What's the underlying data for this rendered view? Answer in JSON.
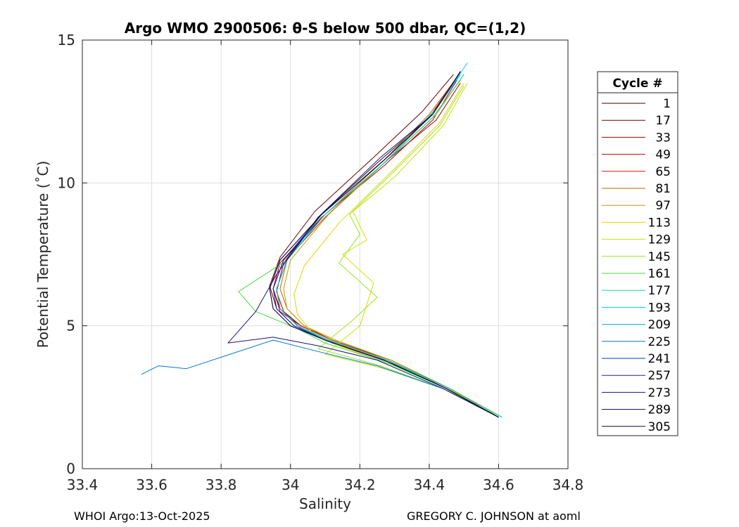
{
  "chart_data": {
    "type": "line",
    "title": "Argo WMO 2900506: θ-S below 500 dbar,  QC=(1,2)",
    "xlabel": "Salinity",
    "ylabel": "Potential Temperature (˚C)",
    "xlim": [
      33.4,
      34.8
    ],
    "ylim": [
      0,
      15
    ],
    "xticks": [
      33.4,
      33.6,
      33.8,
      34,
      34.2,
      34.4,
      34.6,
      34.8
    ],
    "xtick_labels": [
      "33.4",
      "33.6",
      "33.8",
      "34",
      "34.2",
      "34.4",
      "34.6",
      "34.8"
    ],
    "yticks": [
      0,
      5,
      10,
      15
    ],
    "ytick_labels": [
      "0",
      "5",
      "10",
      "15"
    ],
    "grid": true,
    "legend_title": "Cycle #",
    "legend_position": "right",
    "series": [
      {
        "name": "1",
        "color": "#3c0000",
        "x": [
          34.6,
          34.46,
          34.28,
          34.12,
          34.03,
          33.98,
          33.96,
          33.98,
          34.08,
          34.25,
          34.4,
          34.48
        ],
        "y": [
          1.8,
          2.8,
          3.8,
          4.5,
          5.0,
          5.5,
          6.2,
          7.2,
          8.8,
          10.7,
          12.3,
          13.7
        ]
      },
      {
        "name": "17",
        "color": "#6a0000",
        "x": [
          34.6,
          34.45,
          34.27,
          34.1,
          34.01,
          33.96,
          33.94,
          33.97,
          34.07,
          34.24,
          34.38,
          34.47
        ],
        "y": [
          1.8,
          2.8,
          3.8,
          4.5,
          5.0,
          5.6,
          6.4,
          7.4,
          9.0,
          10.9,
          12.5,
          13.8
        ]
      },
      {
        "name": "33",
        "color": "#990000",
        "x": [
          34.6,
          34.45,
          34.28,
          34.11,
          34.02,
          33.97,
          33.95,
          33.98,
          34.1,
          34.28,
          34.42,
          34.49
        ],
        "y": [
          1.8,
          2.8,
          3.8,
          4.5,
          5.0,
          5.6,
          6.3,
          7.3,
          8.9,
          10.8,
          12.2,
          13.5
        ]
      },
      {
        "name": "49",
        "color": "#c00000",
        "x": [
          34.61,
          34.46,
          34.29,
          34.12,
          34.03,
          33.97,
          33.95,
          33.97,
          34.09,
          34.27,
          34.41,
          34.48
        ],
        "y": [
          1.8,
          2.8,
          3.8,
          4.5,
          5.0,
          5.5,
          6.3,
          7.2,
          8.8,
          10.6,
          12.2,
          13.6
        ]
      },
      {
        "name": "65",
        "color": "#d51a0a",
        "x": [
          34.6,
          34.46,
          34.29,
          34.12,
          34.03,
          33.98,
          33.96,
          33.98,
          34.1,
          34.27,
          34.4,
          34.48
        ],
        "y": [
          1.8,
          2.8,
          3.7,
          4.4,
          4.9,
          5.5,
          6.2,
          7.2,
          8.8,
          10.7,
          12.3,
          13.7
        ]
      },
      {
        "name": "81",
        "color": "#b56a00",
        "x": [
          34.6,
          34.46,
          34.28,
          34.12,
          34.04,
          33.99,
          33.97,
          33.99,
          34.1,
          34.27,
          34.4,
          34.48
        ],
        "y": [
          1.8,
          2.8,
          3.8,
          4.5,
          5.0,
          5.6,
          6.3,
          7.3,
          8.9,
          10.8,
          12.4,
          13.7
        ]
      },
      {
        "name": "97",
        "color": "#c89600",
        "x": [
          34.6,
          34.46,
          34.29,
          34.13,
          34.04,
          33.99,
          33.98,
          34.0,
          34.11,
          34.28,
          34.41,
          34.49
        ],
        "y": [
          1.8,
          2.8,
          3.8,
          4.5,
          5.0,
          5.6,
          6.3,
          7.3,
          8.9,
          10.8,
          12.3,
          13.6
        ]
      },
      {
        "name": "113",
        "color": "#e6d200",
        "x": [
          34.6,
          34.47,
          34.3,
          34.14,
          34.06,
          34.02,
          34.01,
          34.04,
          34.14,
          34.3,
          34.43,
          34.5
        ],
        "y": [
          1.8,
          2.7,
          3.6,
          4.3,
          4.8,
          5.4,
          6.1,
          7.1,
          8.6,
          10.5,
          12.1,
          13.5
        ]
      },
      {
        "name": "129",
        "color": "#c8e600",
        "x": [
          34.61,
          34.44,
          34.27,
          34.1,
          34.2,
          34.24,
          34.15,
          34.22,
          34.18,
          34.3,
          34.44,
          34.51
        ],
        "y": [
          1.8,
          2.8,
          3.5,
          4.0,
          5.0,
          6.5,
          7.5,
          8.0,
          9.0,
          10.2,
          12.0,
          13.5
        ]
      },
      {
        "name": "145",
        "color": "#96e61e",
        "x": [
          34.61,
          34.44,
          34.26,
          34.08,
          34.18,
          34.25,
          34.14,
          34.2,
          34.17,
          34.29,
          34.43,
          34.5
        ],
        "y": [
          1.8,
          2.8,
          3.6,
          4.2,
          5.2,
          6.0,
          7.2,
          8.2,
          8.9,
          10.3,
          12.0,
          13.4
        ]
      },
      {
        "name": "161",
        "color": "#46dc3c",
        "x": [
          34.6,
          34.45,
          34.28,
          34.1,
          34.02,
          33.9,
          33.85,
          33.99,
          34.1,
          34.28,
          34.42,
          34.5
        ],
        "y": [
          1.8,
          2.8,
          3.7,
          4.4,
          4.9,
          5.5,
          6.2,
          7.3,
          8.9,
          10.8,
          12.4,
          13.8
        ]
      },
      {
        "name": "177",
        "color": "#1edc8c",
        "x": [
          34.6,
          34.45,
          34.28,
          34.11,
          34.02,
          33.97,
          33.96,
          33.99,
          34.1,
          34.28,
          34.42,
          34.5
        ],
        "y": [
          1.8,
          2.8,
          3.8,
          4.5,
          5.0,
          5.6,
          6.3,
          7.3,
          8.9,
          10.8,
          12.4,
          13.8
        ]
      },
      {
        "name": "193",
        "color": "#00d2c8",
        "x": [
          34.61,
          34.46,
          34.28,
          34.11,
          34.02,
          33.97,
          33.96,
          33.99,
          34.1,
          34.28,
          34.42,
          34.51
        ],
        "y": [
          1.8,
          2.8,
          3.8,
          4.5,
          5.0,
          5.6,
          6.3,
          7.3,
          8.9,
          10.8,
          12.6,
          14.2
        ]
      },
      {
        "name": "209",
        "color": "#00aadc",
        "x": [
          34.6,
          34.45,
          34.27,
          34.1,
          34.02,
          33.97,
          33.96,
          33.99,
          34.09,
          34.27,
          34.41,
          34.49
        ],
        "y": [
          1.8,
          2.8,
          3.8,
          4.5,
          5.0,
          5.6,
          6.3,
          7.3,
          8.9,
          10.8,
          12.4,
          13.8
        ]
      },
      {
        "name": "225",
        "color": "#0078d2",
        "x": [
          34.6,
          34.44,
          34.25,
          34.08,
          33.95,
          33.8,
          33.7,
          33.62,
          33.57
        ],
        "y": [
          1.8,
          2.8,
          3.6,
          4.1,
          4.5,
          3.9,
          3.5,
          3.6,
          3.3
        ]
      },
      {
        "name": "241",
        "color": "#0046c8",
        "x": [
          34.6,
          34.45,
          34.27,
          34.1,
          34.01,
          33.96,
          33.95,
          33.98,
          34.09,
          34.27,
          34.41,
          34.49
        ],
        "y": [
          1.8,
          2.8,
          3.8,
          4.5,
          5.0,
          5.6,
          6.3,
          7.3,
          8.9,
          10.8,
          12.4,
          13.9
        ]
      },
      {
        "name": "257",
        "color": "#1e1eb4",
        "x": [
          34.6,
          34.45,
          34.27,
          34.1,
          34.01,
          33.96,
          33.95,
          33.98,
          34.09,
          34.27,
          34.41,
          34.49
        ],
        "y": [
          1.8,
          2.8,
          3.8,
          4.5,
          5.0,
          5.6,
          6.3,
          7.3,
          8.9,
          10.8,
          12.4,
          13.9
        ]
      },
      {
        "name": "273",
        "color": "#141478",
        "x": [
          34.6,
          34.44,
          34.25,
          34.08,
          33.95,
          33.82,
          33.9,
          33.96,
          34.08,
          34.26,
          34.41,
          34.49
        ],
        "y": [
          1.8,
          2.8,
          3.8,
          4.3,
          4.6,
          4.4,
          5.5,
          6.8,
          8.8,
          10.9,
          12.4,
          13.9
        ]
      },
      {
        "name": "289",
        "color": "#0a0a50",
        "x": [
          34.6,
          34.45,
          34.27,
          34.1,
          34.0,
          33.95,
          33.94,
          33.97,
          34.09,
          34.27,
          34.41,
          34.49
        ],
        "y": [
          1.8,
          2.8,
          3.8,
          4.5,
          5.0,
          5.6,
          6.3,
          7.3,
          8.9,
          10.8,
          12.4,
          13.9
        ]
      },
      {
        "name": "305",
        "color": "#0a0a3c",
        "x": [
          34.6,
          34.45,
          34.27,
          34.1,
          34.0,
          33.95,
          33.94,
          33.97,
          34.09,
          34.27,
          34.41,
          34.49
        ],
        "y": [
          1.8,
          2.8,
          3.8,
          4.5,
          5.0,
          5.6,
          6.3,
          7.3,
          8.9,
          10.8,
          12.4,
          13.9
        ]
      }
    ]
  },
  "footer": {
    "left": "WHOI Argo:13-Oct-2025",
    "right": "GREGORY C. JOHNSON at aoml"
  }
}
